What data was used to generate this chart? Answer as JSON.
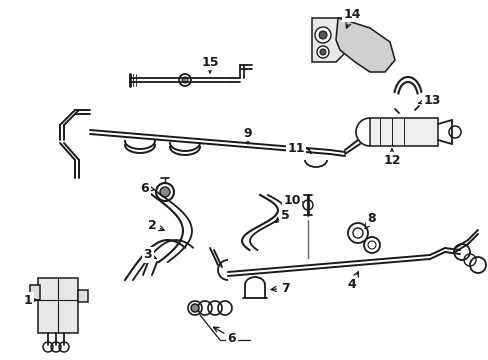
{
  "bg_color": "#ffffff",
  "line_color": "#1a1a1a",
  "figsize": [
    4.89,
    3.6
  ],
  "dpi": 100,
  "label_fontsize": 9,
  "lw": 1.1
}
